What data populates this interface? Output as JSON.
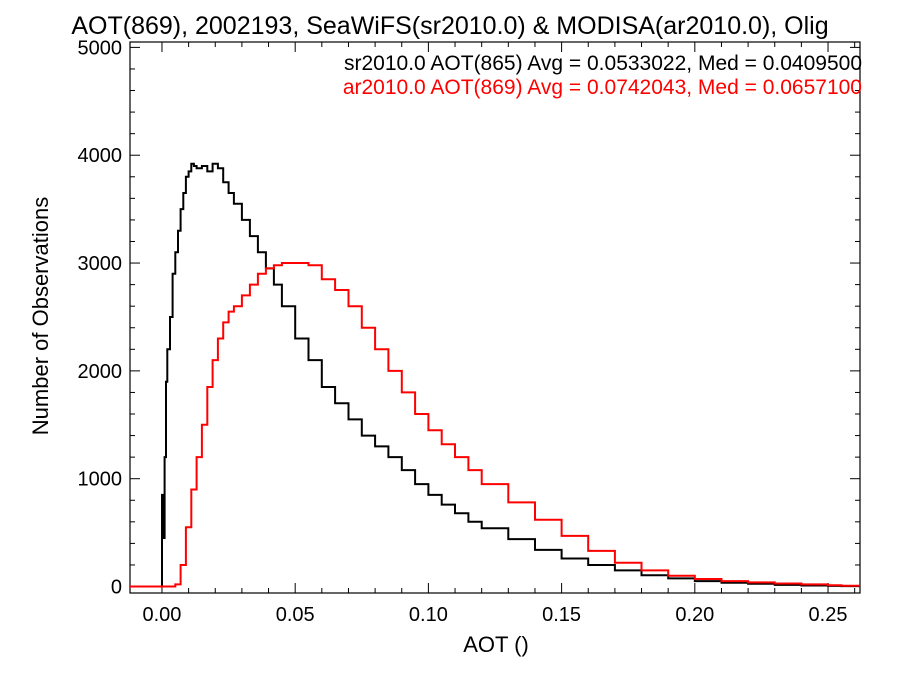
{
  "chart_data": {
    "type": "line",
    "title": "AOT(869), 2002193, SeaWiFS(sr2010.0) & MODISA(ar2010.0), Olig",
    "xlabel": "AOT ()",
    "ylabel": "Number of Observations",
    "xlim": [
      -0.012,
      0.262
    ],
    "ylim": [
      -60,
      5050
    ],
    "xticks": [
      "0.00",
      "0.05",
      "0.10",
      "0.15",
      "0.20",
      "0.25"
    ],
    "xtick_values": [
      0.0,
      0.05,
      0.1,
      0.15,
      0.2,
      0.25
    ],
    "yticks": [
      "0",
      "1000",
      "2000",
      "3000",
      "4000",
      "5000"
    ],
    "ytick_values": [
      0,
      1000,
      2000,
      3000,
      4000,
      5000
    ],
    "grid": false,
    "legend_position": "top-right",
    "series": [
      {
        "name": "sr2010.0 AOT(865) Avg = 0.0533022, Med = 0.0409500",
        "color": "#000000",
        "step": true,
        "x": [
          -0.012,
          -0.001,
          0.0,
          0.0005,
          0.001,
          0.0015,
          0.002,
          0.003,
          0.004,
          0.005,
          0.006,
          0.007,
          0.008,
          0.009,
          0.01,
          0.011,
          0.012,
          0.013,
          0.015,
          0.017,
          0.019,
          0.021,
          0.023,
          0.025,
          0.027,
          0.03,
          0.033,
          0.036,
          0.039,
          0.042,
          0.045,
          0.05,
          0.055,
          0.06,
          0.065,
          0.07,
          0.075,
          0.08,
          0.085,
          0.09,
          0.095,
          0.1,
          0.105,
          0.11,
          0.115,
          0.12,
          0.13,
          0.14,
          0.15,
          0.16,
          0.17,
          0.18,
          0.19,
          0.2,
          0.21,
          0.22,
          0.23,
          0.24,
          0.25,
          0.255
        ],
        "y": [
          0,
          0,
          850,
          450,
          1200,
          1900,
          2200,
          2500,
          2900,
          3100,
          3300,
          3500,
          3650,
          3800,
          3850,
          3920,
          3900,
          3880,
          3900,
          3850,
          3920,
          3880,
          3750,
          3650,
          3550,
          3400,
          3250,
          3100,
          2950,
          2800,
          2600,
          2300,
          2100,
          1850,
          1700,
          1550,
          1400,
          1300,
          1200,
          1080,
          950,
          850,
          760,
          680,
          600,
          540,
          440,
          340,
          260,
          200,
          150,
          105,
          75,
          50,
          35,
          25,
          15,
          10,
          6,
          4
        ]
      },
      {
        "name": "ar2010.0 AOT(869) Avg = 0.0742043, Med = 0.0657100",
        "color": "#ff0000",
        "step": true,
        "x": [
          -0.012,
          0.0,
          0.005,
          0.007,
          0.009,
          0.011,
          0.013,
          0.015,
          0.017,
          0.019,
          0.021,
          0.023,
          0.025,
          0.027,
          0.03,
          0.033,
          0.036,
          0.039,
          0.042,
          0.045,
          0.05,
          0.055,
          0.06,
          0.065,
          0.07,
          0.075,
          0.08,
          0.085,
          0.09,
          0.095,
          0.1,
          0.105,
          0.11,
          0.115,
          0.12,
          0.13,
          0.14,
          0.15,
          0.16,
          0.17,
          0.18,
          0.19,
          0.2,
          0.21,
          0.22,
          0.23,
          0.24,
          0.25,
          0.255
        ],
        "y": [
          0,
          0,
          20,
          200,
          550,
          900,
          1200,
          1500,
          1850,
          2100,
          2300,
          2450,
          2550,
          2600,
          2700,
          2800,
          2900,
          2950,
          2980,
          3000,
          3000,
          2980,
          2850,
          2750,
          2600,
          2400,
          2200,
          2000,
          1800,
          1600,
          1450,
          1320,
          1200,
          1080,
          950,
          780,
          620,
          470,
          330,
          220,
          150,
          100,
          70,
          50,
          38,
          28,
          20,
          12,
          8
        ]
      }
    ]
  }
}
